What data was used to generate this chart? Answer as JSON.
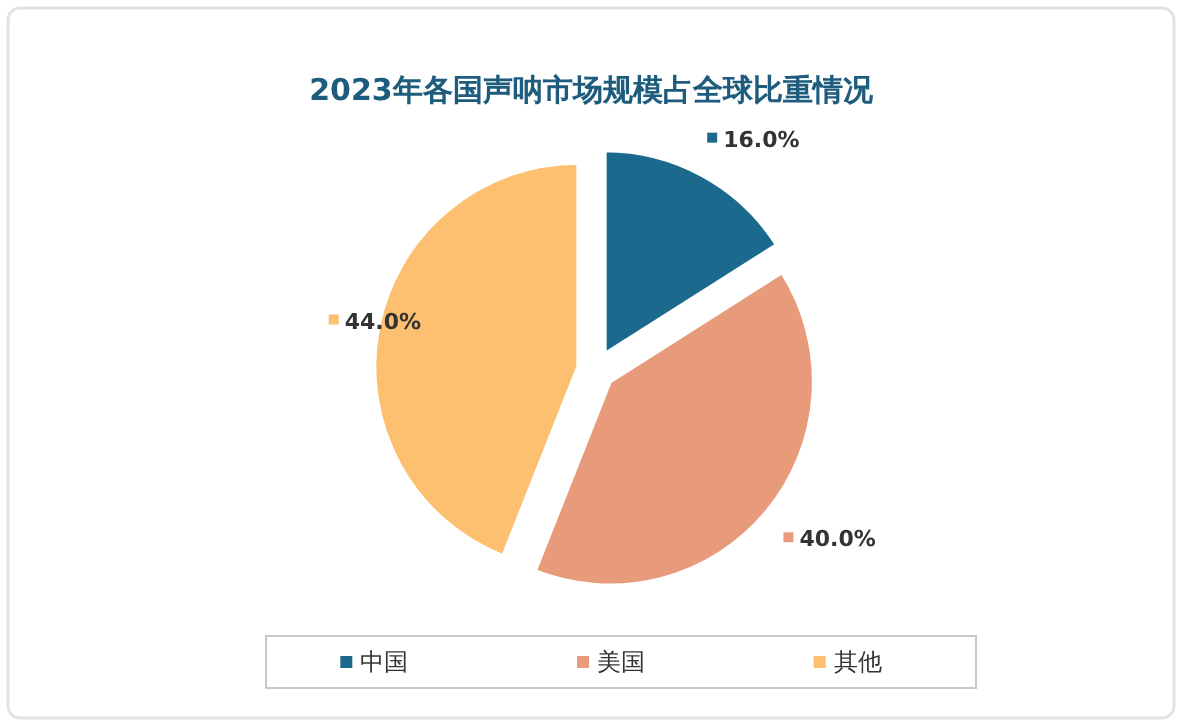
{
  "chart_data": {
    "type": "pie",
    "title": "2023年各国声呐市场规模占全球比重情况",
    "categories": [
      "中国",
      "美国",
      "其他"
    ],
    "values": [
      16,
      40,
      44
    ],
    "colors": [
      "#1b6a8e",
      "#e79b7b",
      "#fdc070"
    ],
    "value_labels": [
      "16.0%",
      "40.0%",
      "44.0%"
    ],
    "legend": "bottom"
  }
}
